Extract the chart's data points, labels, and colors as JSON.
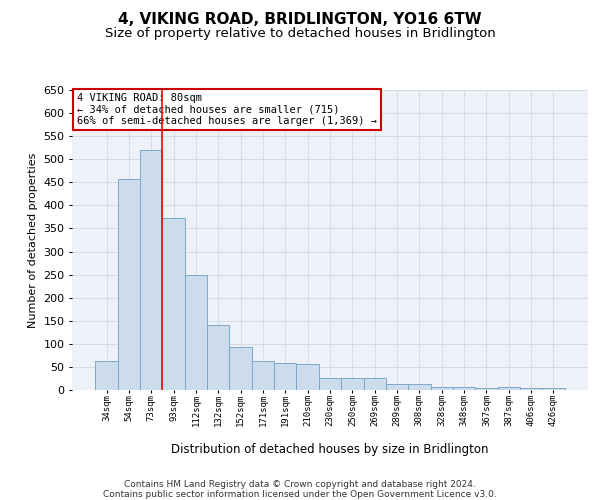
{
  "title": "4, VIKING ROAD, BRIDLINGTON, YO16 6TW",
  "subtitle": "Size of property relative to detached houses in Bridlington",
  "xlabel": "Distribution of detached houses by size in Bridlington",
  "ylabel": "Number of detached properties",
  "footer_line1": "Contains HM Land Registry data © Crown copyright and database right 2024.",
  "footer_line2": "Contains public sector information licensed under the Open Government Licence v3.0.",
  "bar_labels": [
    "34sqm",
    "54sqm",
    "73sqm",
    "93sqm",
    "112sqm",
    "132sqm",
    "152sqm",
    "171sqm",
    "191sqm",
    "210sqm",
    "230sqm",
    "250sqm",
    "269sqm",
    "289sqm",
    "308sqm",
    "328sqm",
    "348sqm",
    "367sqm",
    "387sqm",
    "406sqm",
    "426sqm"
  ],
  "bar_values": [
    63,
    457,
    521,
    372,
    249,
    141,
    93,
    63,
    58,
    56,
    27,
    26,
    26,
    12,
    12,
    7,
    6,
    5,
    7,
    5,
    4
  ],
  "bar_color": "#ccdcec",
  "bar_edge_color": "#7aaac8",
  "ylim": [
    0,
    650
  ],
  "yticks": [
    0,
    50,
    100,
    150,
    200,
    250,
    300,
    350,
    400,
    450,
    500,
    550,
    600,
    650
  ],
  "red_line_x": 2.5,
  "annotation_title": "4 VIKING ROAD: 80sqm",
  "annotation_line1": "← 34% of detached houses are smaller (715)",
  "annotation_line2": "66% of semi-detached houses are larger (1,369) →",
  "annotation_box_color": "#ffffff",
  "annotation_box_edge_color": "#cc0000",
  "grid_color": "#d0d8e8",
  "bg_color": "#eef2f8",
  "title_fontsize": 11,
  "subtitle_fontsize": 9.5
}
